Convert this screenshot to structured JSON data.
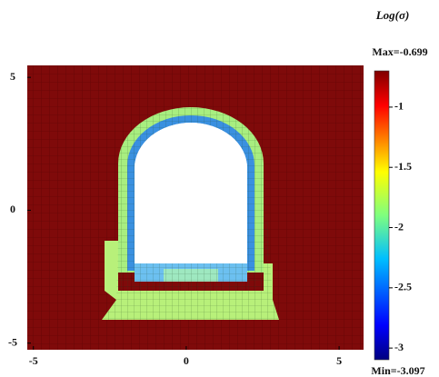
{
  "chart_data": {
    "type": "contour",
    "title": "Log(σ)",
    "max_label": "Max=-0.699",
    "min_label": "Min=-3.097",
    "clim": [
      -3.097,
      -0.699
    ],
    "cticks": [
      -3,
      -2.5,
      -2,
      -1.5,
      -1
    ],
    "colormap": "jet",
    "xlim": [
      -5.2,
      5.8
    ],
    "xticks": [
      -5,
      0,
      5
    ],
    "ylim": [
      -5.25,
      5.45
    ],
    "yticks": [
      -5,
      0,
      5
    ]
  }
}
